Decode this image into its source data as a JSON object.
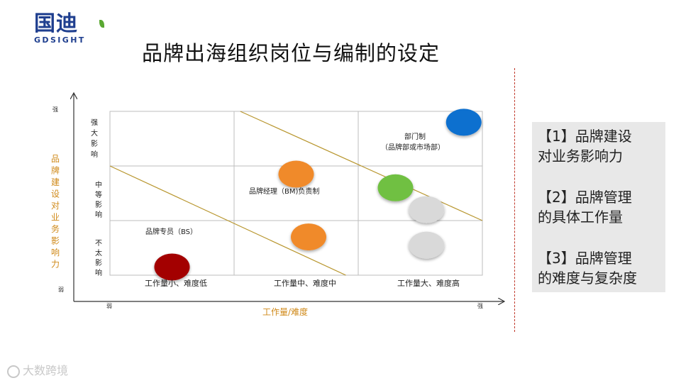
{
  "logo": {
    "main": "国迪",
    "sub": "GDSIGHT"
  },
  "title": "品牌出海组织岗位与编制的设定",
  "chart_data": {
    "type": "matrix",
    "x_axis": {
      "label": "工作量/难度",
      "low": "弱",
      "high": "强"
    },
    "y_axis": {
      "label": "品牌建设对业务影响力",
      "low": "弱",
      "high": "强"
    },
    "columns": [
      "工作量小、难度低",
      "工作量中、难度中",
      "工作量大、难度高"
    ],
    "rows": [
      "强大影响",
      "中等影响",
      "不太影响"
    ],
    "annotations": [
      {
        "text": "品牌专员（BS）",
        "row": 2,
        "col": 0
      },
      {
        "text": "品牌经理（BM)负责制",
        "row": 1,
        "col": 1
      },
      {
        "text": "部门制",
        "row": 0,
        "col": 2
      },
      {
        "text": "（品牌部或市场部）",
        "row": 0,
        "col": 2
      }
    ],
    "points": [
      {
        "x": 0.5,
        "y": 0.15,
        "color": "#a30000"
      },
      {
        "x": 1.5,
        "y": 1.85,
        "color": "#f08a2c"
      },
      {
        "x": 1.6,
        "y": 0.7,
        "color": "#f08a2c"
      },
      {
        "x": 2.3,
        "y": 1.6,
        "color": "#70c042"
      },
      {
        "x": 2.85,
        "y": 2.8,
        "color": "#0a6fcf"
      },
      {
        "x": 2.55,
        "y": 1.2,
        "color": "#d9d9d9"
      },
      {
        "x": 2.55,
        "y": 0.55,
        "color": "#d9d9d9"
      }
    ],
    "diagonals": [
      {
        "from": [
          0,
          2
        ],
        "to": [
          1.9,
          0
        ]
      },
      {
        "from": [
          1.05,
          3
        ],
        "to": [
          3,
          1
        ]
      }
    ]
  },
  "side_notes": [
    {
      "line1": "【1】品牌建设",
      "line2": "对业务影响力"
    },
    {
      "line1": "【2】品牌管理",
      "line2": "的具体工作量"
    },
    {
      "line1": "【3】品牌管理",
      "line2": "的难度与复杂度"
    }
  ],
  "watermark": "大数跨境"
}
